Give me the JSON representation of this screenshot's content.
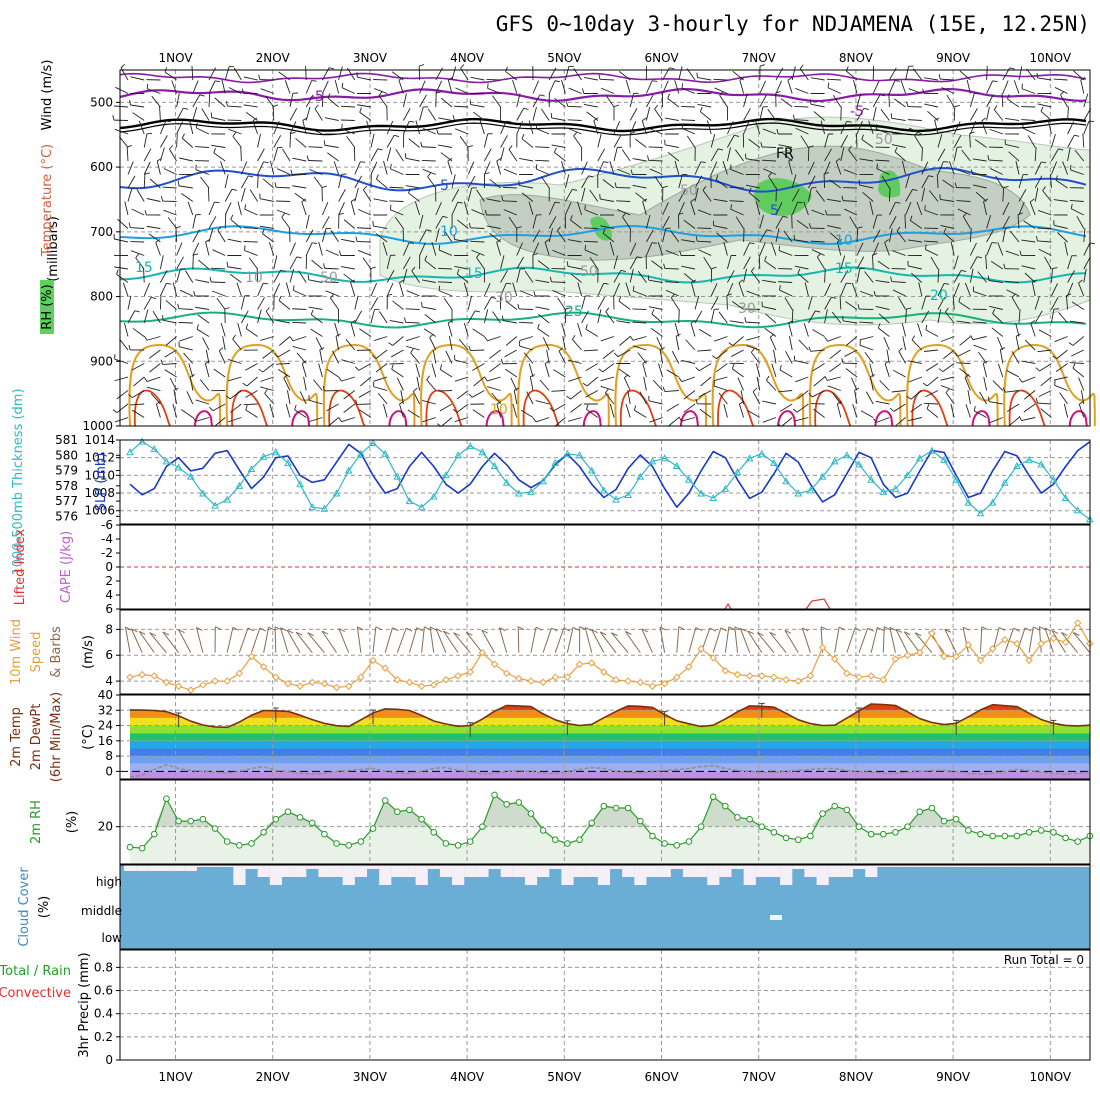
{
  "title": "GFS 0~10day 3-hourly for NDJAMENA (15E, 12.25N)",
  "colors": {
    "grid": "#9a9a9a",
    "temp_purple": "#8a1aa8",
    "temp_black": "#000000",
    "temp_blue": "#1f4fd0",
    "temp_lightblue": "#1e9fe0",
    "temp_teal": "#12b8b0",
    "temp_green": "#16b080",
    "temp_orange": "#e0a020",
    "temp_red": "#e04010",
    "temp_magenta": "#d0107a",
    "rh_light": "#e4f2e2",
    "rh_mid": "#c3cfc3",
    "rh_green": "#60cc60",
    "slp": "#1838c8",
    "thickness": "#30b8c8",
    "lifted_index": "#e03030",
    "cape": "#c060d0",
    "wind10": "#e8a040",
    "barb": "#8a6a50",
    "temp2m": "#7a3010",
    "dewpt": "#909090",
    "rh2m": "#2a9a2a",
    "rh2m_fill": "#e8f2e6",
    "rh2m_fill_dark": "#cfdccd",
    "cloud": "#6aaed6",
    "cloud_clear": "#f5f0f8",
    "precip_total": "#22a022",
    "precip_conv": "#e03030"
  },
  "chart_data": [
    {
      "panel": "upper-air",
      "type": "heatmap",
      "x": [
        "1NOV",
        "2NOV",
        "3NOV",
        "4NOV",
        "5NOV",
        "6NOV",
        "7NOV",
        "8NOV",
        "9NOV",
        "10NOV"
      ],
      "ylabel": "(millibars)",
      "ylabel_parts": [
        "RH (%)",
        "Temperature (°C)",
        "Wind (m/s)"
      ],
      "y_ticks": [
        "500",
        "600",
        "700",
        "800",
        "900",
        "1000"
      ],
      "ylim": [
        1000,
        450
      ],
      "temperature_labels": [
        "-5",
        "-5",
        "FR",
        "5",
        "5",
        "10",
        "10",
        "15",
        "15",
        "15",
        "20",
        "25",
        "10",
        "10",
        "50",
        "50",
        "50",
        "50",
        "30",
        "30"
      ]
    },
    {
      "panel": "slp-thickness",
      "type": "line",
      "ylabel_left": "1000-500mb Thickness (dm)",
      "ylabel_right": "SLP (mb)",
      "y_left_ticks": [
        "581",
        "580",
        "579",
        "578",
        "577",
        "576"
      ],
      "y_right_ticks": [
        "1014",
        "1012",
        "1010",
        "1008",
        "1006"
      ],
      "y_left_lim": [
        575.5,
        581
      ],
      "y_right_lim": [
        1004.5,
        1014
      ],
      "series": [
        {
          "name": "SLP (mb)",
          "values": [
            1009,
            1007.8,
            1008.5,
            1011,
            1012,
            1010.5,
            1010.8,
            1012.5,
            1012.8,
            1010.6,
            1008.5,
            1009.8,
            1012,
            1012.2,
            1010,
            1009.2,
            1009.5,
            1011.5,
            1013.5,
            1012.5,
            1010,
            1008,
            1008.5,
            1011,
            1012.6,
            1011,
            1009,
            1008,
            1009,
            1011,
            1012.5,
            1011.2,
            1009.5,
            1008.6,
            1009.4,
            1011.2,
            1012.4,
            1011,
            1009,
            1007.5,
            1008.4,
            1010.8,
            1012.3,
            1011,
            1008.5,
            1006.4,
            1008,
            1010.5,
            1012.7,
            1012,
            1009.5,
            1007.4,
            1008.1,
            1010.2,
            1012.5,
            1011.5,
            1009,
            1007,
            1007.8,
            1010.2,
            1012.6,
            1012,
            1009,
            1007.5,
            1008,
            1010.5,
            1012.8,
            1012.6,
            1010,
            1007.5,
            1008,
            1010.5,
            1012.7,
            1012.2,
            1010,
            1008,
            1009,
            1011,
            1012.8,
            1013.8
          ]
        },
        {
          "name": "1000-500mb Thickness (dm)",
          "values": [
            580.2,
            580.9,
            580.4,
            579.6,
            579.2,
            578.6,
            577.5,
            576.7,
            577.1,
            578,
            579.1,
            579.9,
            580.2,
            579.5,
            578.1,
            576.6,
            576.5,
            577.5,
            579,
            580.1,
            580.8,
            580.1,
            578.6,
            577,
            576.6,
            577.3,
            578.7,
            580,
            580.6,
            580.2,
            579.3,
            578.2,
            577.5,
            577.6,
            578.3,
            579.5,
            580.1,
            580,
            579,
            577.7,
            577.1,
            577.4,
            578.6,
            579.6,
            579.8,
            579.3,
            578.4,
            577.5,
            577.2,
            577.8,
            578.9,
            579.8,
            580.1,
            579.5,
            578.3,
            577.5,
            577.7,
            578.6,
            579.6,
            580,
            579.4,
            578.4,
            577.6,
            577.8,
            578.7,
            579.8,
            580.3,
            579.7,
            578.4,
            576.9,
            576.2,
            576.9,
            578.2,
            579.3,
            579.7,
            579.4,
            578.4,
            577.2,
            576.4,
            575.8
          ]
        }
      ]
    },
    {
      "panel": "cape-li",
      "type": "line",
      "ylabel_left": "Lifted Index",
      "ylabel_right": "CAPE (J/kg)",
      "y_ticks": [
        "-6",
        "-4",
        "-2",
        "0",
        "2",
        "4",
        "6"
      ],
      "ylim": [
        -6,
        6
      ]
    },
    {
      "panel": "wind10m",
      "type": "line",
      "ylabel_left": "10m Wind",
      "ylabel_mid": "Speed",
      "ylabel_right": "& Barbs",
      "yunit": "(m/s)",
      "y_ticks": [
        "4",
        "6",
        "8"
      ],
      "ylim": [
        3,
        9.5
      ],
      "series": [
        {
          "name": "10m Wind Speed",
          "values": [
            4.3,
            4.5,
            4.4,
            3.9,
            3.6,
            3.3,
            3.7,
            4.0,
            4.0,
            4.6,
            5.9,
            5.1,
            4.3,
            3.8,
            3.6,
            3.9,
            3.8,
            3.5,
            3.6,
            4.3,
            5.6,
            5.0,
            4.1,
            3.9,
            3.6,
            3.7,
            4.1,
            4.4,
            4.7,
            6.2,
            5.3,
            4.6,
            4.2,
            4.0,
            3.9,
            4.3,
            4.3,
            5.3,
            5.4,
            4.7,
            4.1,
            4.0,
            3.9,
            3.6,
            3.8,
            4.3,
            5.1,
            6.5,
            5.8,
            4.8,
            4.5,
            4.4,
            4.4,
            4.3,
            4.1,
            4.0,
            4.4,
            6.6,
            5.7,
            4.6,
            4.3,
            4.4,
            4.1,
            5.7,
            6.0,
            6.2,
            7.7,
            5.9,
            5.9,
            6.8,
            5.6,
            6.5,
            7.2,
            6.9,
            5.6,
            6.9,
            7.3,
            7.0,
            8.5,
            6.9
          ]
        }
      ]
    },
    {
      "panel": "temp2m",
      "type": "area",
      "ylabel_left": "2m Temp",
      "ylabel_mid": "2m DewPt",
      "ylabel_right": "(6hr Min/Max)",
      "yunit": "(°C)",
      "y_ticks": [
        "0",
        "8",
        "16",
        "24",
        "32",
        "40"
      ],
      "ylim": [
        -4,
        40
      ],
      "series": [
        {
          "name": "2m Temp",
          "values": [
            32.2,
            32.1,
            31.9,
            31.3,
            29.1,
            26.3,
            24.3,
            23.3,
            23.1,
            25.8,
            29.4,
            31.9,
            31.7,
            31.4,
            29.4,
            27.1,
            25.1,
            23.9,
            23.5,
            27.0,
            30.6,
            32.7,
            32.5,
            31.9,
            29.3,
            26.4,
            24.8,
            23.6,
            24.0,
            27.4,
            31.5,
            34.5,
            34.3,
            33.9,
            30.1,
            27.0,
            25.0,
            24.0,
            24.6,
            28.1,
            31.4,
            34.3,
            34.1,
            33.5,
            29.8,
            26.5,
            24.9,
            23.5,
            24.2,
            27.5,
            31.2,
            34.3,
            34.1,
            33.6,
            30.4,
            27.0,
            25.0,
            24.0,
            24.2,
            27.9,
            31.7,
            35.3,
            35.0,
            34.5,
            31.2,
            27.6,
            25.6,
            24.5,
            25.2,
            28.6,
            32.2,
            34.9,
            34.4,
            33.9,
            30.4,
            27.1,
            25.2,
            24.1,
            23.8,
            24.2
          ]
        },
        {
          "name": "2m DewPt",
          "values": [
            -3.0,
            -2.0,
            1.0,
            3.5,
            1.5,
            0.5,
            0.0,
            -0.5,
            -1.0,
            0.0,
            1.5,
            2.5,
            0.5,
            0.0,
            -1.0,
            -1.5,
            -1.0,
            0.0,
            0.5,
            1.0,
            1.5,
            0.0,
            -1.0,
            -1.0,
            0.0,
            1.5,
            2.0,
            0.5,
            0.0,
            -1.5,
            -1.0,
            0.0,
            0.5,
            0.0,
            -1.0,
            -1.0,
            0.0,
            1.0,
            2.0,
            1.5,
            0.0,
            -0.5,
            -1.0,
            0.0,
            0.5,
            1.0,
            1.5,
            2.5,
            3.0,
            1.5,
            0.5,
            0.0,
            -0.5,
            -0.5,
            0.0,
            0.5,
            1.0,
            1.5,
            1.5,
            0.5,
            0.0,
            -0.5,
            -1.0,
            -1.0,
            -0.5,
            0.0,
            0.5,
            0.5,
            0.0,
            -1.0,
            -1.5,
            -1.0,
            0.0,
            1.0,
            0.5,
            -0.5,
            -1.0,
            -1.5,
            -1.0,
            -0.5
          ]
        }
      ]
    },
    {
      "panel": "rh2m",
      "type": "area",
      "ylabel": "2m RH",
      "yunit": "(%)",
      "y_ticks": [
        "20"
      ],
      "ylim": [
        0,
        45
      ],
      "series": [
        {
          "name": "2m RH",
          "values": [
            9,
            8.5,
            16,
            35,
            23,
            23,
            24,
            19,
            12,
            10,
            11,
            17,
            24,
            28,
            25,
            22,
            16,
            11,
            10,
            12,
            19,
            34,
            28,
            29,
            24,
            17,
            11,
            10,
            12,
            20,
            37,
            32,
            33,
            27,
            18,
            13,
            11,
            13,
            22,
            31,
            30,
            30,
            23,
            15,
            11,
            10,
            12,
            20,
            36,
            31,
            25,
            24,
            20,
            17,
            14,
            13,
            15,
            27,
            31,
            29,
            20,
            16,
            16,
            17,
            20,
            28,
            30,
            23,
            24,
            18,
            16,
            15,
            15,
            15,
            17,
            18,
            17,
            14,
            12,
            15
          ]
        }
      ]
    },
    {
      "panel": "cloud",
      "type": "bar",
      "ylabel": "Cloud Cover",
      "yunit": "(%)",
      "y_ticks": [
        "high",
        "middle",
        "low"
      ]
    },
    {
      "panel": "precip",
      "type": "bar",
      "ylabel_left": "Total / Rain",
      "ylabel_left2": "Convective",
      "ylabel": "3hr Precip (mm)",
      "y_ticks": [
        "0",
        "0.2",
        "0.4",
        "0.6",
        "0.8"
      ],
      "ylim": [
        0,
        0.95
      ],
      "run_total": "Run Total = 0"
    }
  ]
}
